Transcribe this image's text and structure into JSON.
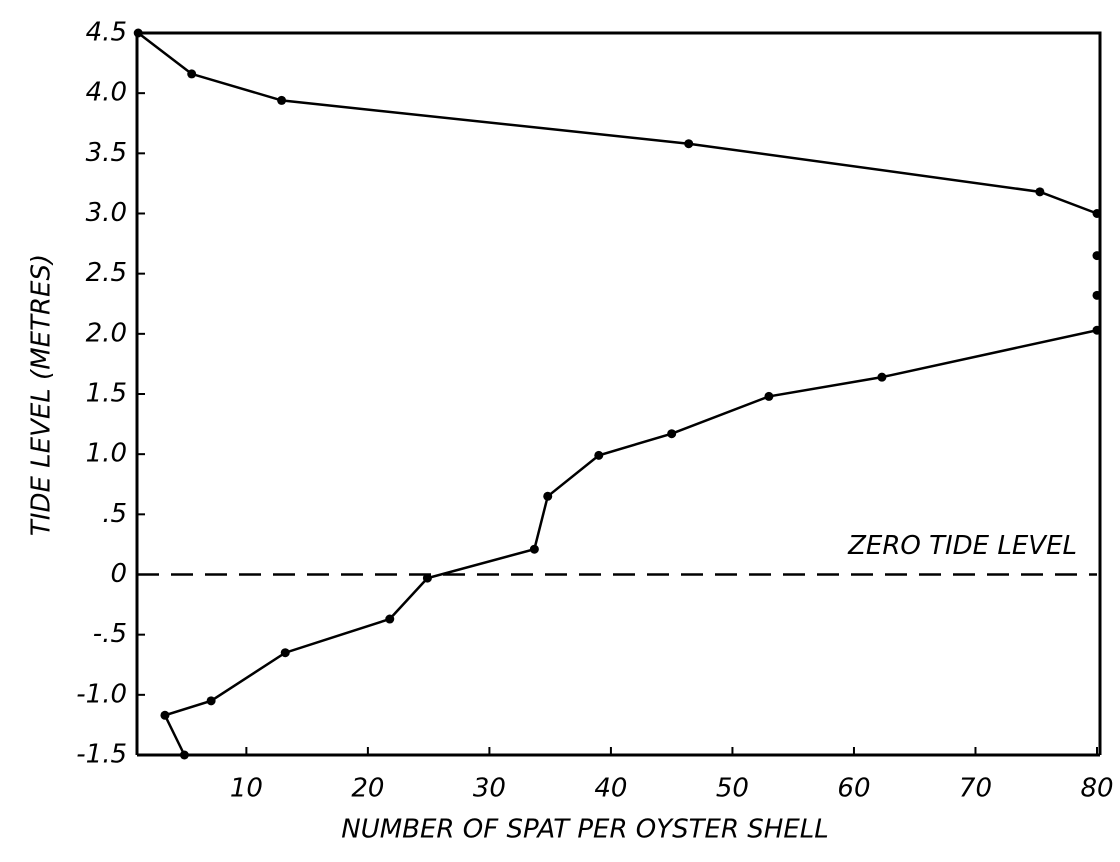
{
  "chart_data": {
    "type": "line",
    "x_label": "NUMBER OF SPAT PER OYSTER SHELL",
    "y_label": "TIDE LEVEL (METRES)",
    "xlim": [
      1,
      80
    ],
    "ylim": [
      -1.5,
      4.5
    ],
    "xticks": [
      10,
      20,
      30,
      40,
      50,
      60,
      70,
      80
    ],
    "yticks": [
      {
        "value": 4.5,
        "label": "4.5"
      },
      {
        "value": 4,
        "label": "4.0"
      },
      {
        "value": 3.5,
        "label": "3.5"
      },
      {
        "value": 3,
        "label": "3.0"
      },
      {
        "value": 2.5,
        "label": "2.5"
      },
      {
        "value": 2,
        "label": "2.0"
      },
      {
        "value": 1.5,
        "label": "1.5"
      },
      {
        "value": 1,
        "label": "1.0"
      },
      {
        "value": 0.5,
        "label": ".5"
      },
      0,
      {
        "value": -0.5,
        "label": "-.5"
      },
      {
        "value": -1,
        "label": "-1.0"
      },
      {
        "value": -1.5,
        "label": "-1.5"
      }
    ],
    "color": "#000000",
    "reference_line": {
      "value": 0,
      "label": "ZERO TIDE LEVEL"
    },
    "series": [
      {
        "connected": true,
        "x": [
          1.1,
          5.5,
          12.9,
          46.4,
          75.3,
          80
        ],
        "values": [
          4.5,
          4.16,
          3.94,
          3.58,
          3.18,
          3.0
        ]
      },
      {
        "connected": false,
        "x": [
          80,
          80
        ],
        "values": [
          2.65,
          2.32
        ]
      },
      {
        "connected": true,
        "x": [
          80,
          62.3,
          53.0,
          45.0,
          39.0,
          34.8,
          33.7,
          24.9,
          21.8,
          13.2,
          7.1,
          3.3,
          4.9
        ],
        "values": [
          2.03,
          1.64,
          1.48,
          1.17,
          0.99,
          0.65,
          0.21,
          -0.03,
          -0.37,
          -0.65,
          -1.05,
          -1.17,
          -1.5
        ]
      }
    ]
  }
}
